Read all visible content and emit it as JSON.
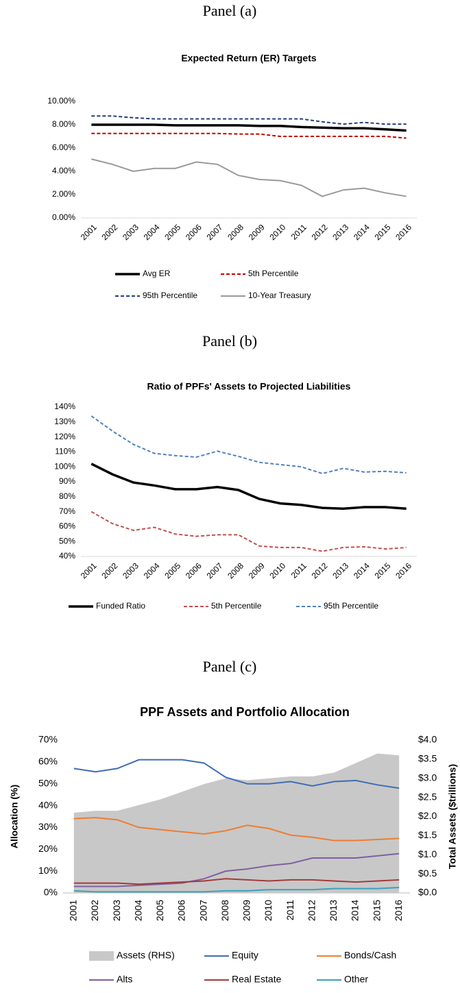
{
  "chart_data": [
    {
      "type": "line",
      "panel": "Panel (a)",
      "title": "Expected Return (ER) Targets",
      "categories": [
        "2001",
        "2002",
        "2003",
        "2004",
        "2005",
        "2006",
        "2007",
        "2008",
        "2009",
        "2010",
        "2011",
        "2012",
        "2013",
        "2014",
        "2015",
        "2016"
      ],
      "ylim": [
        0,
        10
      ],
      "yticks": [
        {
          "value": 0,
          "label": "0.00%"
        },
        {
          "value": 2,
          "label": "2.00%"
        },
        {
          "value": 4,
          "label": "4.00%"
        },
        {
          "value": 6,
          "label": "6.00%"
        },
        {
          "value": 8,
          "label": "8.00%"
        },
        {
          "value": 10,
          "label": "10.00%"
        }
      ],
      "grid": false,
      "series": [
        {
          "name": "Avg ER",
          "color": "#000000",
          "style": "thick",
          "values": [
            8.0,
            8.0,
            8.0,
            8.0,
            7.95,
            7.95,
            7.95,
            7.95,
            7.9,
            7.9,
            7.8,
            7.75,
            7.7,
            7.7,
            7.6,
            7.5
          ]
        },
        {
          "name": "5th Percentile",
          "color": "#c00000",
          "style": "dashed",
          "values": [
            7.25,
            7.25,
            7.25,
            7.25,
            7.25,
            7.25,
            7.25,
            7.2,
            7.2,
            7.0,
            7.0,
            7.0,
            7.0,
            7.0,
            7.0,
            6.85
          ]
        },
        {
          "name": "95th Percentile",
          "color": "#1f3e7a",
          "style": "dashed",
          "values": [
            8.75,
            8.75,
            8.6,
            8.5,
            8.5,
            8.5,
            8.5,
            8.5,
            8.5,
            8.5,
            8.5,
            8.25,
            8.05,
            8.2,
            8.05,
            8.05
          ]
        },
        {
          "name": "10-Year Treasury",
          "color": "#999999",
          "style": "solid",
          "values": [
            5.05,
            4.6,
            4.0,
            4.25,
            4.25,
            4.8,
            4.6,
            3.65,
            3.3,
            3.2,
            2.8,
            1.85,
            2.4,
            2.55,
            2.15,
            1.85
          ]
        }
      ]
    },
    {
      "type": "line",
      "panel": "Panel (b)",
      "title": "Ratio of PPFs' Assets to Projected Liabilities",
      "categories": [
        "2001",
        "2002",
        "2003",
        "2004",
        "2005",
        "2006",
        "2007",
        "2008",
        "2009",
        "2010",
        "2011",
        "2012",
        "2013",
        "2014",
        "2015",
        "2016"
      ],
      "ylim": [
        40,
        140
      ],
      "yticks": [
        {
          "value": 40,
          "label": "40%"
        },
        {
          "value": 50,
          "label": "50%"
        },
        {
          "value": 60,
          "label": "60%"
        },
        {
          "value": 70,
          "label": "70%"
        },
        {
          "value": 80,
          "label": "80%"
        },
        {
          "value": 90,
          "label": "90%"
        },
        {
          "value": 100,
          "label": "100%"
        },
        {
          "value": 110,
          "label": "110%"
        },
        {
          "value": 120,
          "label": "120%"
        },
        {
          "value": 130,
          "label": "130%"
        },
        {
          "value": 140,
          "label": "140%"
        }
      ],
      "grid": false,
      "series": [
        {
          "name": "Funded Ratio",
          "color": "#000000",
          "style": "thick",
          "values": [
            102,
            95,
            89.5,
            87.5,
            85,
            85,
            86.5,
            84.5,
            78.5,
            75.5,
            74.5,
            72.5,
            72,
            73,
            73,
            72
          ]
        },
        {
          "name": "5th Percentile",
          "color": "#c0504d",
          "style": "dashed",
          "values": [
            70,
            62,
            57.5,
            59.5,
            55,
            53.5,
            54.5,
            54.5,
            47,
            46,
            46,
            43.5,
            46,
            46.5,
            45,
            46
          ]
        },
        {
          "name": "95th Percentile",
          "color": "#4f81bd",
          "style": "dashed",
          "values": [
            134,
            124,
            115,
            109,
            107.5,
            106.5,
            110.5,
            107,
            103,
            101.5,
            100,
            95.5,
            99,
            96.5,
            97,
            96
          ]
        }
      ]
    },
    {
      "type": "line",
      "panel": "Panel (c)",
      "title": "PPF Assets and Portfolio Allocation",
      "ylabel": "Allocation (%)",
      "y2label": "Total Assets  ($trillions)",
      "categories": [
        "2001",
        "2002",
        "2003",
        "2004",
        "2005",
        "2006",
        "2007",
        "2008",
        "2009",
        "2010",
        "2011",
        "2012",
        "2013",
        "2014",
        "2015",
        "2016"
      ],
      "ylim": [
        0,
        70
      ],
      "yticks": [
        {
          "value": 0,
          "label": "0%"
        },
        {
          "value": 10,
          "label": "10%"
        },
        {
          "value": 20,
          "label": "20%"
        },
        {
          "value": 30,
          "label": "30%"
        },
        {
          "value": 40,
          "label": "40%"
        },
        {
          "value": 50,
          "label": "50%"
        },
        {
          "value": 60,
          "label": "60%"
        },
        {
          "value": 70,
          "label": "70%"
        }
      ],
      "y2lim": [
        0,
        4
      ],
      "y2ticks": [
        {
          "value": 0,
          "label": "$0.0"
        },
        {
          "value": 0.5,
          "label": "$0.5"
        },
        {
          "value": 1,
          "label": "$1.0"
        },
        {
          "value": 1.5,
          "label": "$1.5"
        },
        {
          "value": 2,
          "label": "$2.0"
        },
        {
          "value": 2.5,
          "label": "$2.5"
        },
        {
          "value": 3,
          "label": "$3.0"
        },
        {
          "value": 3.5,
          "label": "$3.5"
        },
        {
          "value": 4,
          "label": "$4.0"
        }
      ],
      "grid": false,
      "series": [
        {
          "name": "Assets (RHS)",
          "color": "#c8c8c8",
          "style": "area",
          "axis": "y2",
          "values": [
            2.1,
            2.15,
            2.15,
            2.3,
            2.45,
            2.65,
            2.85,
            3.0,
            2.95,
            3.0,
            3.05,
            3.05,
            3.15,
            3.4,
            3.65,
            3.6
          ]
        },
        {
          "name": "Equity",
          "color": "#3f6db5",
          "style": "solid",
          "values": [
            57,
            55.5,
            57,
            61,
            61,
            61,
            59.5,
            53,
            50,
            50,
            51,
            49,
            51,
            51.5,
            49.5,
            48
          ]
        },
        {
          "name": "Bonds/Cash",
          "color": "#ed7d31",
          "style": "solid",
          "values": [
            34,
            34.5,
            33.5,
            30,
            29,
            28,
            27,
            28.5,
            31,
            29.5,
            26.5,
            25.5,
            24,
            24,
            24.5,
            25
          ]
        },
        {
          "name": "Alts",
          "color": "#7f5fa0",
          "style": "solid",
          "values": [
            3,
            3,
            3,
            3.5,
            4,
            4.5,
            6.5,
            10,
            11,
            12.5,
            13.5,
            16,
            16,
            16,
            17,
            18
          ]
        },
        {
          "name": "Real Estate",
          "color": "#a33a3a",
          "style": "solid",
          "values": [
            4.5,
            4.5,
            4.5,
            4,
            4.5,
            5,
            5.5,
            6.5,
            6,
            5.5,
            6,
            6,
            5.5,
            5,
            5.5,
            6
          ]
        },
        {
          "name": "Other",
          "color": "#3aa0bd",
          "style": "solid",
          "values": [
            1,
            0.5,
            0.5,
            0.5,
            0.5,
            0.5,
            0.5,
            1,
            1,
            1.5,
            1.5,
            1.5,
            2,
            2,
            2,
            2.5
          ]
        }
      ]
    }
  ]
}
